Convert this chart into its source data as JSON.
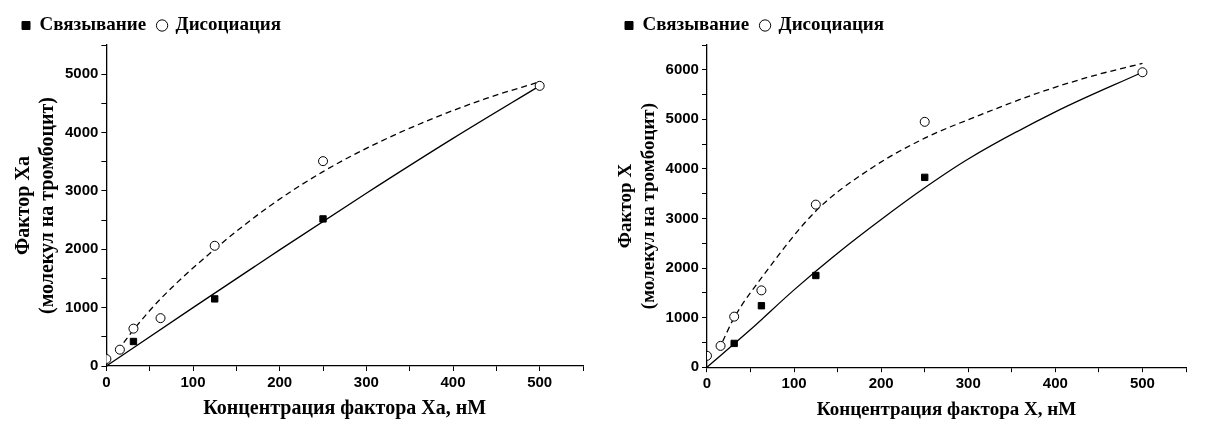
{
  "chart_data": [
    {
      "type": "scatter",
      "xlabel": "Концентрация фактора Xa, нМ",
      "ylabel": "Фактор Xa\n(молекул на тромбоцит)",
      "legend": "top",
      "grid": false,
      "xlim": [
        0,
        550
      ],
      "xticks": [
        0,
        {
          "value": 50,
          "label": null
        },
        100,
        {
          "value": 150,
          "label": null
        },
        200,
        {
          "value": 250,
          "label": null
        },
        300,
        {
          "value": 350,
          "label": null
        },
        400,
        {
          "value": 450,
          "label": null
        },
        500,
        {
          "value": 550,
          "label": null
        }
      ],
      "ylim": [
        0,
        5500
      ],
      "yticks": [
        0,
        {
          "value": 500,
          "label": null
        },
        1000,
        {
          "value": 1500,
          "label": null
        },
        2000,
        {
          "value": 2500,
          "label": null
        },
        3000,
        {
          "value": 3500,
          "label": null
        },
        4000,
        {
          "value": 4500,
          "label": null
        },
        5000,
        {
          "value": 5500,
          "label": null
        }
      ],
      "series": [
        {
          "name": "Связывание",
          "type": "scatter",
          "marker": "square",
          "color": "#000000",
          "x": [
            31.25,
            125,
            250
          ],
          "values": [
            420,
            1150,
            2520
          ]
        },
        {
          "name": "Дисоциация",
          "type": "scatter",
          "marker": "circle",
          "color": "#000000",
          "x": [
            0,
            15.6,
            31.25,
            62.5,
            125,
            250,
            500
          ],
          "values": [
            120,
            280,
            640,
            820,
            2060,
            3510,
            4800
          ]
        },
        {
          "type": "line",
          "marker": "none",
          "line_style": "solid",
          "color": "#000000",
          "x": [
            0,
            100,
            200,
            300,
            400,
            500
          ],
          "values": [
            0,
            1000,
            1990,
            2960,
            3900,
            4800
          ]
        },
        {
          "type": "line",
          "marker": "none",
          "line_style": "dashed",
          "color": "#000000",
          "x": [
            20,
            31.25,
            62.5,
            125,
            187.5,
            250,
            312.5,
            375,
            437.5,
            500
          ],
          "values": [
            400,
            620,
            1150,
            2000,
            2730,
            3330,
            3820,
            4230,
            4580,
            4870
          ]
        }
      ]
    },
    {
      "type": "scatter",
      "xlabel": "Концентрация фактора X, нМ",
      "ylabel": "Фактор X\n(молекул на тромбоцит)",
      "legend": "top",
      "grid": false,
      "xlim": [
        0,
        550
      ],
      "xticks": [
        0,
        {
          "value": 50,
          "label": null
        },
        100,
        {
          "value": 150,
          "label": null
        },
        200,
        {
          "value": 250,
          "label": null
        },
        300,
        {
          "value": 350,
          "label": null
        },
        400,
        {
          "value": 450,
          "label": null
        },
        500,
        {
          "value": 550,
          "label": null
        }
      ],
      "ylim": [
        0,
        6500
      ],
      "yticks": [
        0,
        {
          "value": 500,
          "label": null
        },
        1000,
        {
          "value": 1500,
          "label": null
        },
        2000,
        {
          "value": 2500,
          "label": null
        },
        3000,
        {
          "value": 3500,
          "label": null
        },
        4000,
        {
          "value": 4500,
          "label": null
        },
        5000,
        {
          "value": 5500,
          "label": null
        },
        6000,
        {
          "value": 6500,
          "label": null
        }
      ],
      "series": [
        {
          "name": "Связывание",
          "type": "scatter",
          "marker": "square",
          "color": "#000000",
          "x": [
            31.25,
            62.5,
            125,
            250
          ],
          "values": [
            480,
            1240,
            1850,
            3830
          ]
        },
        {
          "name": "Дисоциация",
          "type": "scatter",
          "marker": "circle",
          "color": "#000000",
          "x": [
            0,
            15.6,
            31.25,
            62.5,
            125,
            250,
            500
          ],
          "values": [
            230,
            430,
            1020,
            1550,
            3280,
            4950,
            5950
          ]
        },
        {
          "type": "line",
          "marker": "none",
          "line_style": "solid",
          "color": "#000000",
          "x": [
            0,
            50,
            100,
            150,
            200,
            250,
            300,
            400,
            500
          ],
          "values": [
            0,
            760,
            1560,
            2300,
            2980,
            3620,
            4200,
            5150,
            5950
          ]
        },
        {
          "type": "line",
          "marker": "none",
          "line_style": "dashed",
          "color": "#000000",
          "x": [
            18,
            31.25,
            62.5,
            125,
            187.5,
            250,
            312.5,
            375,
            437.5,
            500
          ],
          "values": [
            520,
            1000,
            1800,
            3150,
            4000,
            4620,
            5080,
            5500,
            5850,
            6130
          ]
        }
      ]
    }
  ]
}
